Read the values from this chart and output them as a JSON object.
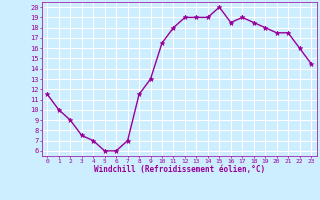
{
  "x": [
    0,
    1,
    2,
    3,
    4,
    5,
    6,
    7,
    8,
    9,
    10,
    11,
    12,
    13,
    14,
    15,
    16,
    17,
    18,
    19,
    20,
    21,
    22,
    23
  ],
  "y": [
    11.5,
    10,
    9,
    7.5,
    7,
    6,
    6,
    7,
    11.5,
    13,
    16.5,
    18,
    19,
    19,
    19,
    20,
    18.5,
    19,
    18.5,
    18,
    17.5,
    17.5,
    16,
    14.5
  ],
  "line_color": "#990099",
  "marker": "*",
  "marker_color": "#990099",
  "bg_color": "#cceeff",
  "grid_color": "#ffffff",
  "xlabel": "Windchill (Refroidissement éolien,°C)",
  "xlim": [
    -0.5,
    23.5
  ],
  "ylim": [
    5.5,
    20.5
  ],
  "xticks": [
    0,
    1,
    2,
    3,
    4,
    5,
    6,
    7,
    8,
    9,
    10,
    11,
    12,
    13,
    14,
    15,
    16,
    17,
    18,
    19,
    20,
    21,
    22,
    23
  ],
  "yticks": [
    6,
    7,
    8,
    9,
    10,
    11,
    12,
    13,
    14,
    15,
    16,
    17,
    18,
    19,
    20
  ],
  "xlabel_color": "#990099",
  "tick_color": "#990099",
  "line_width": 1.0,
  "marker_size": 3.5
}
